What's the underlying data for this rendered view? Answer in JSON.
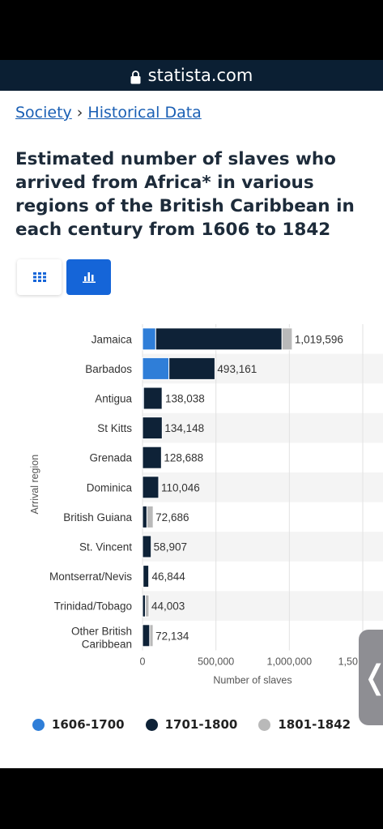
{
  "browser": {
    "url": "statista.com"
  },
  "breadcrumb": {
    "items": [
      "Society",
      "Historical Data"
    ],
    "separator": "›"
  },
  "page": {
    "title": "Estimated number of slaves who arrived from Africa* in various regions of the British Caribbean in each century from 1606 to 1842"
  },
  "view_toggle": {
    "table_icon": "grid-icon",
    "chart_icon": "bar-chart-icon",
    "active": "chart"
  },
  "colors": {
    "s1": "#2f7ed8",
    "s2": "#0e2237",
    "s3": "#b9b9b9",
    "accent": "#1565d8"
  },
  "chart_data": {
    "type": "bar",
    "orientation": "horizontal",
    "stacked": true,
    "categories": [
      "Jamaica",
      "Barbados",
      "Antigua",
      "St Kitts",
      "Grenada",
      "Dominica",
      "British Guiana",
      "St. Vincent",
      "Montserrat/Nevis",
      "Trinidad/Tobago",
      "Other British Caribbean"
    ],
    "series": [
      {
        "name": "1606-1700",
        "values": [
          90000,
          180000,
          7000,
          0,
          0,
          0,
          0,
          0,
          4000,
          0,
          0
        ]
      },
      {
        "name": "1701-1800",
        "values": [
          860000,
          313161,
          127000,
          134148,
          128688,
          110046,
          30000,
          58907,
          38844,
          20000,
          49134
        ]
      },
      {
        "name": "1801-1842",
        "values": [
          69596,
          0,
          4038,
          0,
          0,
          0,
          42686,
          0,
          4000,
          24003,
          23000
        ]
      }
    ],
    "totals": [
      "1,019,596",
      "493,161",
      "138,038",
      "134,148",
      "128,688",
      "110,046",
      "72,686",
      "58,907",
      "46,844",
      "44,003",
      "72,134"
    ],
    "xlabel": "Number of slaves",
    "ylabel": "Arrival region",
    "xticks": [
      "0",
      "500,000",
      "1,000,000",
      "1,50…"
    ],
    "xlim": [
      0,
      1500000
    ],
    "grid": true,
    "legend": "bottom"
  },
  "side_tab": {
    "glyph": "❬",
    "icon": "chevron-left-icon"
  }
}
